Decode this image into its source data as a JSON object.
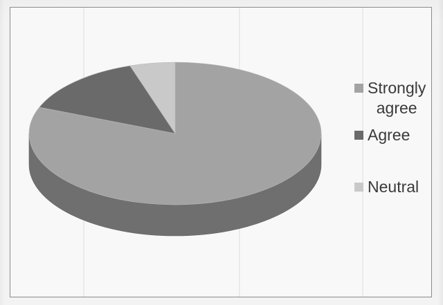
{
  "chart_data": {
    "type": "pie",
    "style": "3d",
    "title": "",
    "categories": [
      "Strongly agree",
      "Agree",
      "Neutral"
    ],
    "values": [
      81,
      14,
      5
    ],
    "unit": "percent (estimated from slice angles)",
    "colors": [
      "#a3a3a3",
      "#6a6a6a",
      "#c9c9c9"
    ],
    "legend": {
      "position": "right",
      "entries": [
        "Strongly agree",
        "Agree",
        "Neutral"
      ],
      "line1": [
        "Strongly",
        "Agree",
        "Neutral"
      ],
      "line2": [
        "agree",
        "",
        ""
      ]
    }
  }
}
